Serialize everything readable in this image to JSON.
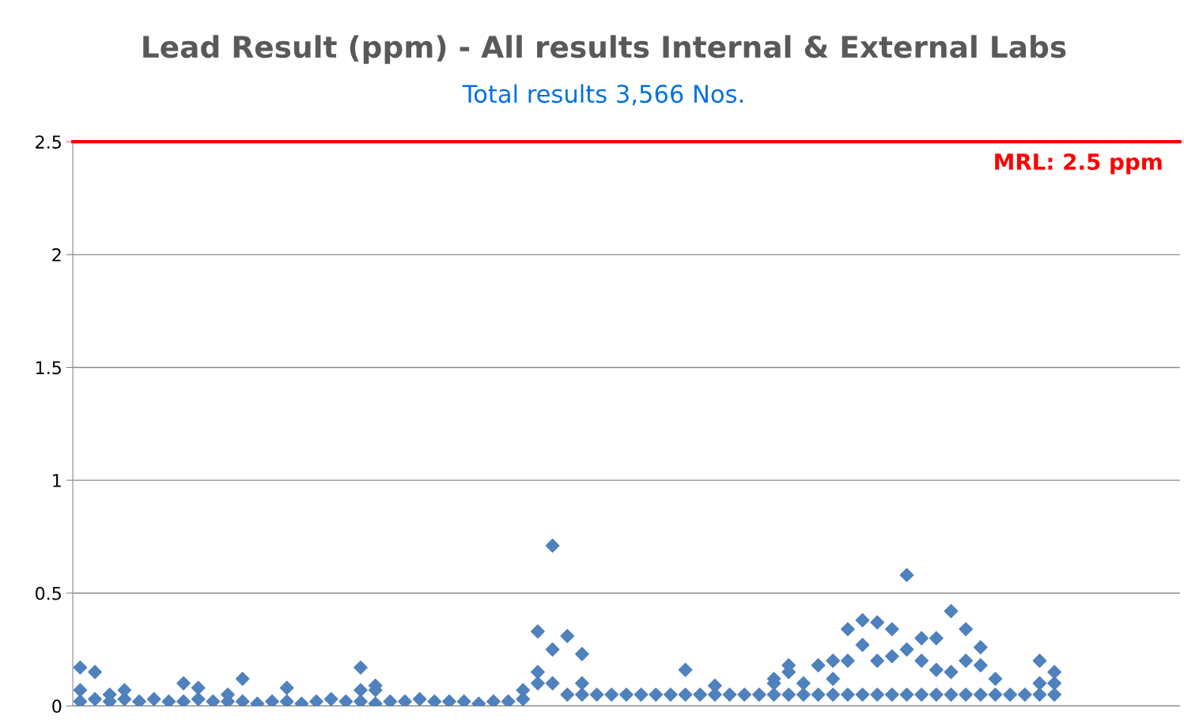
{
  "chart_data": {
    "type": "scatter",
    "title": "Lead Result (ppm) - All results Internal & External Labs",
    "subtitle": "Total results 3,566 Nos.",
    "categories": [
      null,
      null,
      null,
      null,
      null,
      null,
      null,
      null,
      null,
      null,
      null,
      null,
      null,
      null,
      null,
      null,
      null,
      null,
      null,
      null,
      null,
      null,
      null,
      null,
      null,
      null,
      null,
      null,
      null,
      null,
      null,
      null,
      null,
      null,
      null,
      null,
      null,
      null,
      null,
      null,
      null,
      null,
      null,
      null,
      null,
      null,
      null,
      null,
      null,
      null,
      null,
      null,
      null,
      null,
      null,
      null,
      null,
      null,
      null,
      null,
      null,
      null,
      null,
      null,
      null,
      null,
      null,
      null,
      null,
      null,
      null,
      null,
      null,
      null,
      null
    ],
    "series": [
      {
        "color": "#4f81bd",
        "values": [
          0.02,
          0.03,
          0.02,
          0.03,
          0.02,
          0.03,
          0.02,
          0.02,
          0.03,
          0.02,
          0.02,
          0.02,
          0.01,
          0.02,
          0.02,
          0.01,
          0.02,
          0.03,
          0.02,
          0.02,
          0.01,
          0.02,
          0.02,
          0.03,
          0.02,
          0.02,
          0.02,
          0.01,
          0.02,
          0.02,
          0.03,
          0.1,
          0.1,
          0.05,
          0.05,
          0.05,
          0.05,
          0.05,
          0.05,
          0.05,
          0.05,
          0.05,
          0.05,
          0.05,
          0.05,
          0.05,
          0.05,
          0.05,
          0.05,
          0.05,
          0.05,
          0.05,
          0.05,
          0.05,
          0.05,
          0.05,
          0.05,
          0.05,
          0.05,
          0.05,
          0.05,
          0.05,
          0.05,
          0.05,
          0.05,
          0.05,
          0.05,
          null,
          null,
          null,
          null,
          null,
          null,
          null,
          null
        ]
      },
      {
        "color": "#4f81bd",
        "values": [
          0.17,
          0.15,
          null,
          0.07,
          null,
          null,
          null,
          0.1,
          0.08,
          null,
          null,
          0.12,
          null,
          null,
          0.08,
          null,
          null,
          null,
          null,
          0.17,
          0.09,
          null,
          null,
          null,
          null,
          null,
          null,
          null,
          null,
          null,
          0.07,
          0.33,
          0.71,
          null,
          0.23,
          null,
          null,
          null,
          null,
          null,
          null,
          0.16,
          null,
          0.09,
          null,
          null,
          null,
          0.12,
          0.18,
          null,
          null,
          0.2,
          0.34,
          0.38,
          0.37,
          0.34,
          0.58,
          0.3,
          0.16,
          0.42,
          0.34,
          0.26,
          null,
          null,
          null,
          0.2,
          0.15,
          null,
          null,
          null,
          null,
          null,
          null,
          null,
          null
        ]
      },
      {
        "color": "#4f81bd",
        "values": [
          0.07,
          null,
          0.05,
          null,
          null,
          null,
          null,
          null,
          null,
          null,
          0.05,
          null,
          null,
          null,
          null,
          null,
          null,
          null,
          null,
          0.07,
          0.07,
          null,
          null,
          null,
          null,
          null,
          null,
          null,
          null,
          null,
          null,
          0.15,
          0.25,
          0.31,
          0.1,
          null,
          null,
          null,
          null,
          null,
          null,
          null,
          null,
          null,
          null,
          null,
          null,
          0.1,
          0.15,
          0.1,
          0.18,
          0.12,
          0.2,
          0.27,
          0.2,
          0.22,
          0.25,
          0.2,
          0.3,
          0.15,
          0.2,
          0.18,
          0.12,
          null,
          null,
          0.1,
          0.1,
          null,
          null,
          null,
          null,
          null,
          null,
          null,
          null
        ]
      }
    ],
    "ylim": [
      0,
      2.5
    ],
    "yticks": [
      0,
      0.5,
      1,
      1.5,
      2,
      2.5
    ],
    "grid": "y",
    "legend": false,
    "marker": "diamond",
    "tick_labels": "y",
    "ref_lines": [
      {
        "axis": "y",
        "value": 2.5,
        "label": "MRL: 2.5 ppm",
        "color": "#ff0000"
      }
    ]
  }
}
